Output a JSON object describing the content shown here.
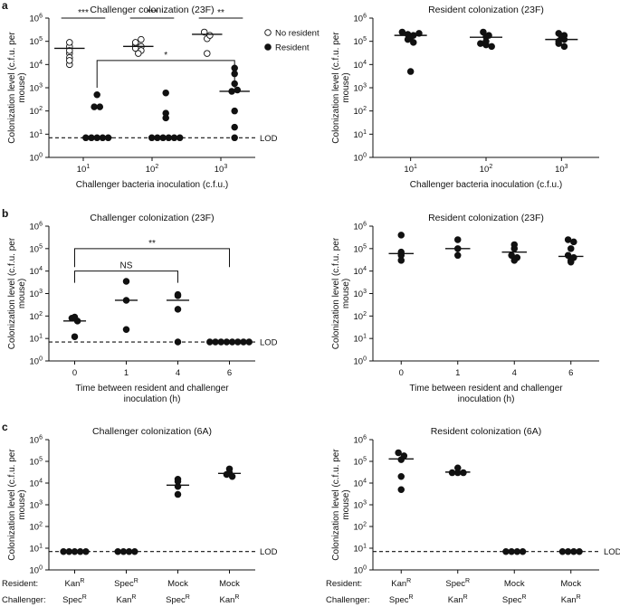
{
  "figure": {
    "panel_labels": [
      "a",
      "b",
      "c"
    ],
    "legend": {
      "no_resident": "No resident",
      "resident": "Resident"
    },
    "lod_label": "LOD",
    "row_c_labels": {
      "resident": "Resident:",
      "challenger": "Challenger:"
    }
  },
  "chart_data": [
    {
      "id": "a-left",
      "type": "scatter",
      "title": "Challenger colonization (23F)",
      "ylabel": "Colonization level (c.f.u. per mouse)",
      "xlabel": "Challenger bacteria inoculation (c.f.u.)",
      "yscale": "log",
      "ylim_exp": [
        0,
        6
      ],
      "lod": 7,
      "categories": [
        {
          "base": "10",
          "sup": "1"
        },
        {
          "base": "10",
          "sup": "2"
        },
        {
          "base": "10",
          "sup": "3"
        }
      ],
      "series": [
        {
          "name": "No resident",
          "filled": false,
          "offset": -0.2,
          "groups": [
            [
              60000,
              30000,
              90000,
              20000,
              10000,
              15000,
              40000
            ],
            [
              70000,
              60000,
              50000,
              90000,
              40000,
              30000,
              120000
            ],
            [
              250000,
              130000,
              180000,
              30000
            ]
          ],
          "medians": [
            50000,
            60000,
            200000
          ]
        },
        {
          "name": "Resident",
          "filled": true,
          "offset": 0.2,
          "groups": [
            [
              500,
              150,
              150,
              7,
              7,
              7,
              7,
              7
            ],
            [
              600,
              80,
              50,
              7,
              7,
              7,
              7,
              7,
              7
            ],
            [
              7000,
              4000,
              1500,
              700,
              800,
              100,
              20,
              7
            ]
          ],
          "medians": [
            7,
            7,
            700
          ]
        }
      ],
      "significance": [
        {
          "label": "***",
          "type": "line",
          "cat1": 0,
          "cat2": 0,
          "y": 1000000
        },
        {
          "label": "***",
          "type": "line",
          "cat1": 1,
          "cat2": 1,
          "y": 1000000
        },
        {
          "label": "**",
          "type": "line",
          "cat1": 2,
          "cat2": 2,
          "y": 1000000
        },
        {
          "label": "*",
          "type": "bracket",
          "cat1": 0,
          "cat2": 2,
          "y": 15000,
          "drop": 1000
        }
      ]
    },
    {
      "id": "a-right",
      "type": "scatter",
      "title": "Resident colonization (23F)",
      "ylabel": "Colonization level (c.f.u. per mouse)",
      "xlabel": "Challenger bacteria inoculation (c.f.u.)",
      "yscale": "log",
      "ylim_exp": [
        0,
        6
      ],
      "lod": null,
      "categories": [
        {
          "base": "10",
          "sup": "1"
        },
        {
          "base": "10",
          "sup": "2"
        },
        {
          "base": "10",
          "sup": "3"
        }
      ],
      "series": [
        {
          "name": "Resident",
          "filled": true,
          "offset": 0,
          "groups": [
            [
              250000,
              200000,
              180000,
              120000,
              220000,
              150000,
              90000,
              5000
            ],
            [
              250000,
              180000,
              160000,
              80000,
              70000,
              60000,
              100000
            ],
            [
              220000,
              180000,
              150000,
              100000,
              80000,
              60000,
              120000
            ]
          ],
          "medians": [
            180000,
            150000,
            120000
          ]
        }
      ],
      "significance": []
    },
    {
      "id": "b-left",
      "type": "scatter",
      "title": "Challenger colonization (23F)",
      "ylabel": "Colonization level (c.f.u. per mouse)",
      "xlabel": "Time between resident and challenger inoculation (h)",
      "yscale": "log",
      "ylim_exp": [
        0,
        6
      ],
      "lod": 7,
      "categories": [
        {
          "base": "0"
        },
        {
          "base": "1"
        },
        {
          "base": "4"
        },
        {
          "base": "6"
        }
      ],
      "series": [
        {
          "name": "Resident",
          "filled": true,
          "offset": 0,
          "groups": [
            [
              80,
              60,
              90,
              12
            ],
            [
              3500,
              500,
              25
            ],
            [
              800,
              900,
              200,
              7
            ],
            [
              7,
              7,
              7,
              7,
              7,
              7,
              7,
              7
            ]
          ],
          "medians": [
            60,
            500,
            500,
            7
          ]
        }
      ],
      "significance": [
        {
          "label": "**",
          "type": "bracket",
          "cat1": 0,
          "cat2": 3,
          "y": 100000,
          "drop": 15000
        },
        {
          "label": "NS",
          "type": "bracket",
          "cat1": 0,
          "cat2": 2,
          "y": 10000,
          "drop": 3000
        }
      ]
    },
    {
      "id": "b-right",
      "type": "scatter",
      "title": "Resident colonization (23F)",
      "ylabel": "Colonization level (c.f.u. per mouse)",
      "xlabel": "Time between resident and challenger inoculation (h)",
      "yscale": "log",
      "ylim_exp": [
        0,
        6
      ],
      "lod": null,
      "categories": [
        {
          "base": "0"
        },
        {
          "base": "1"
        },
        {
          "base": "4"
        },
        {
          "base": "6"
        }
      ],
      "series": [
        {
          "name": "Resident",
          "filled": true,
          "offset": 0,
          "groups": [
            [
              400000,
              70000,
              50000,
              30000
            ],
            [
              250000,
              100000,
              50000
            ],
            [
              150000,
              100000,
              50000,
              40000,
              30000
            ],
            [
              250000,
              200000,
              100000,
              50000,
              40000,
              30000,
              25000
            ]
          ],
          "medians": [
            60000,
            100000,
            70000,
            45000
          ]
        }
      ],
      "significance": []
    },
    {
      "id": "c-left",
      "type": "scatter",
      "title": "Challenger colonization (6A)",
      "ylabel": "Colonization level (c.f.u. per mouse)",
      "xlabel": "",
      "yscale": "log",
      "ylim_exp": [
        0,
        6
      ],
      "lod": 7,
      "categories": [
        {
          "resident": "Kan",
          "resident_sup": "R",
          "challenger": "Spec",
          "challenger_sup": "R"
        },
        {
          "resident": "Spec",
          "resident_sup": "R",
          "challenger": "Kan",
          "challenger_sup": "R"
        },
        {
          "resident": "Mock",
          "resident_sup": "",
          "challenger": "Spec",
          "challenger_sup": "R"
        },
        {
          "resident": "Mock",
          "resident_sup": "",
          "challenger": "Kan",
          "challenger_sup": "R"
        }
      ],
      "series": [
        {
          "name": "Resident",
          "filled": true,
          "offset": 0,
          "groups": [
            [
              7,
              7,
              7,
              7,
              7
            ],
            [
              7,
              7,
              7,
              7
            ],
            [
              15000,
              12000,
              7000,
              3000
            ],
            [
              45000,
              30000,
              25000,
              20000
            ]
          ],
          "medians": [
            null,
            null,
            8000,
            28000
          ]
        }
      ],
      "significance": []
    },
    {
      "id": "c-right",
      "type": "scatter",
      "title": "Resident colonization (6A)",
      "ylabel": "Colonization level (c.f.u. per mouse)",
      "xlabel": "",
      "yscale": "log",
      "ylim_exp": [
        0,
        6
      ],
      "lod": 7,
      "categories": [
        {
          "resident": "Kan",
          "resident_sup": "R",
          "challenger": "Spec",
          "challenger_sup": "R"
        },
        {
          "resident": "Spec",
          "resident_sup": "R",
          "challenger": "Kan",
          "challenger_sup": "R"
        },
        {
          "resident": "Mock",
          "resident_sup": "",
          "challenger": "Spec",
          "challenger_sup": "R"
        },
        {
          "resident": "Mock",
          "resident_sup": "",
          "challenger": "Kan",
          "challenger_sup": "R"
        }
      ],
      "series": [
        {
          "name": "Resident",
          "filled": true,
          "offset": 0,
          "groups": [
            [
              250000,
              180000,
              120000,
              20000,
              5000
            ],
            [
              50000,
              30000,
              30000,
              30000
            ],
            [
              7,
              7,
              7,
              7
            ],
            [
              7,
              7,
              7,
              7
            ]
          ],
          "medians": [
            130000,
            32000,
            null,
            null
          ]
        }
      ],
      "significance": []
    }
  ]
}
